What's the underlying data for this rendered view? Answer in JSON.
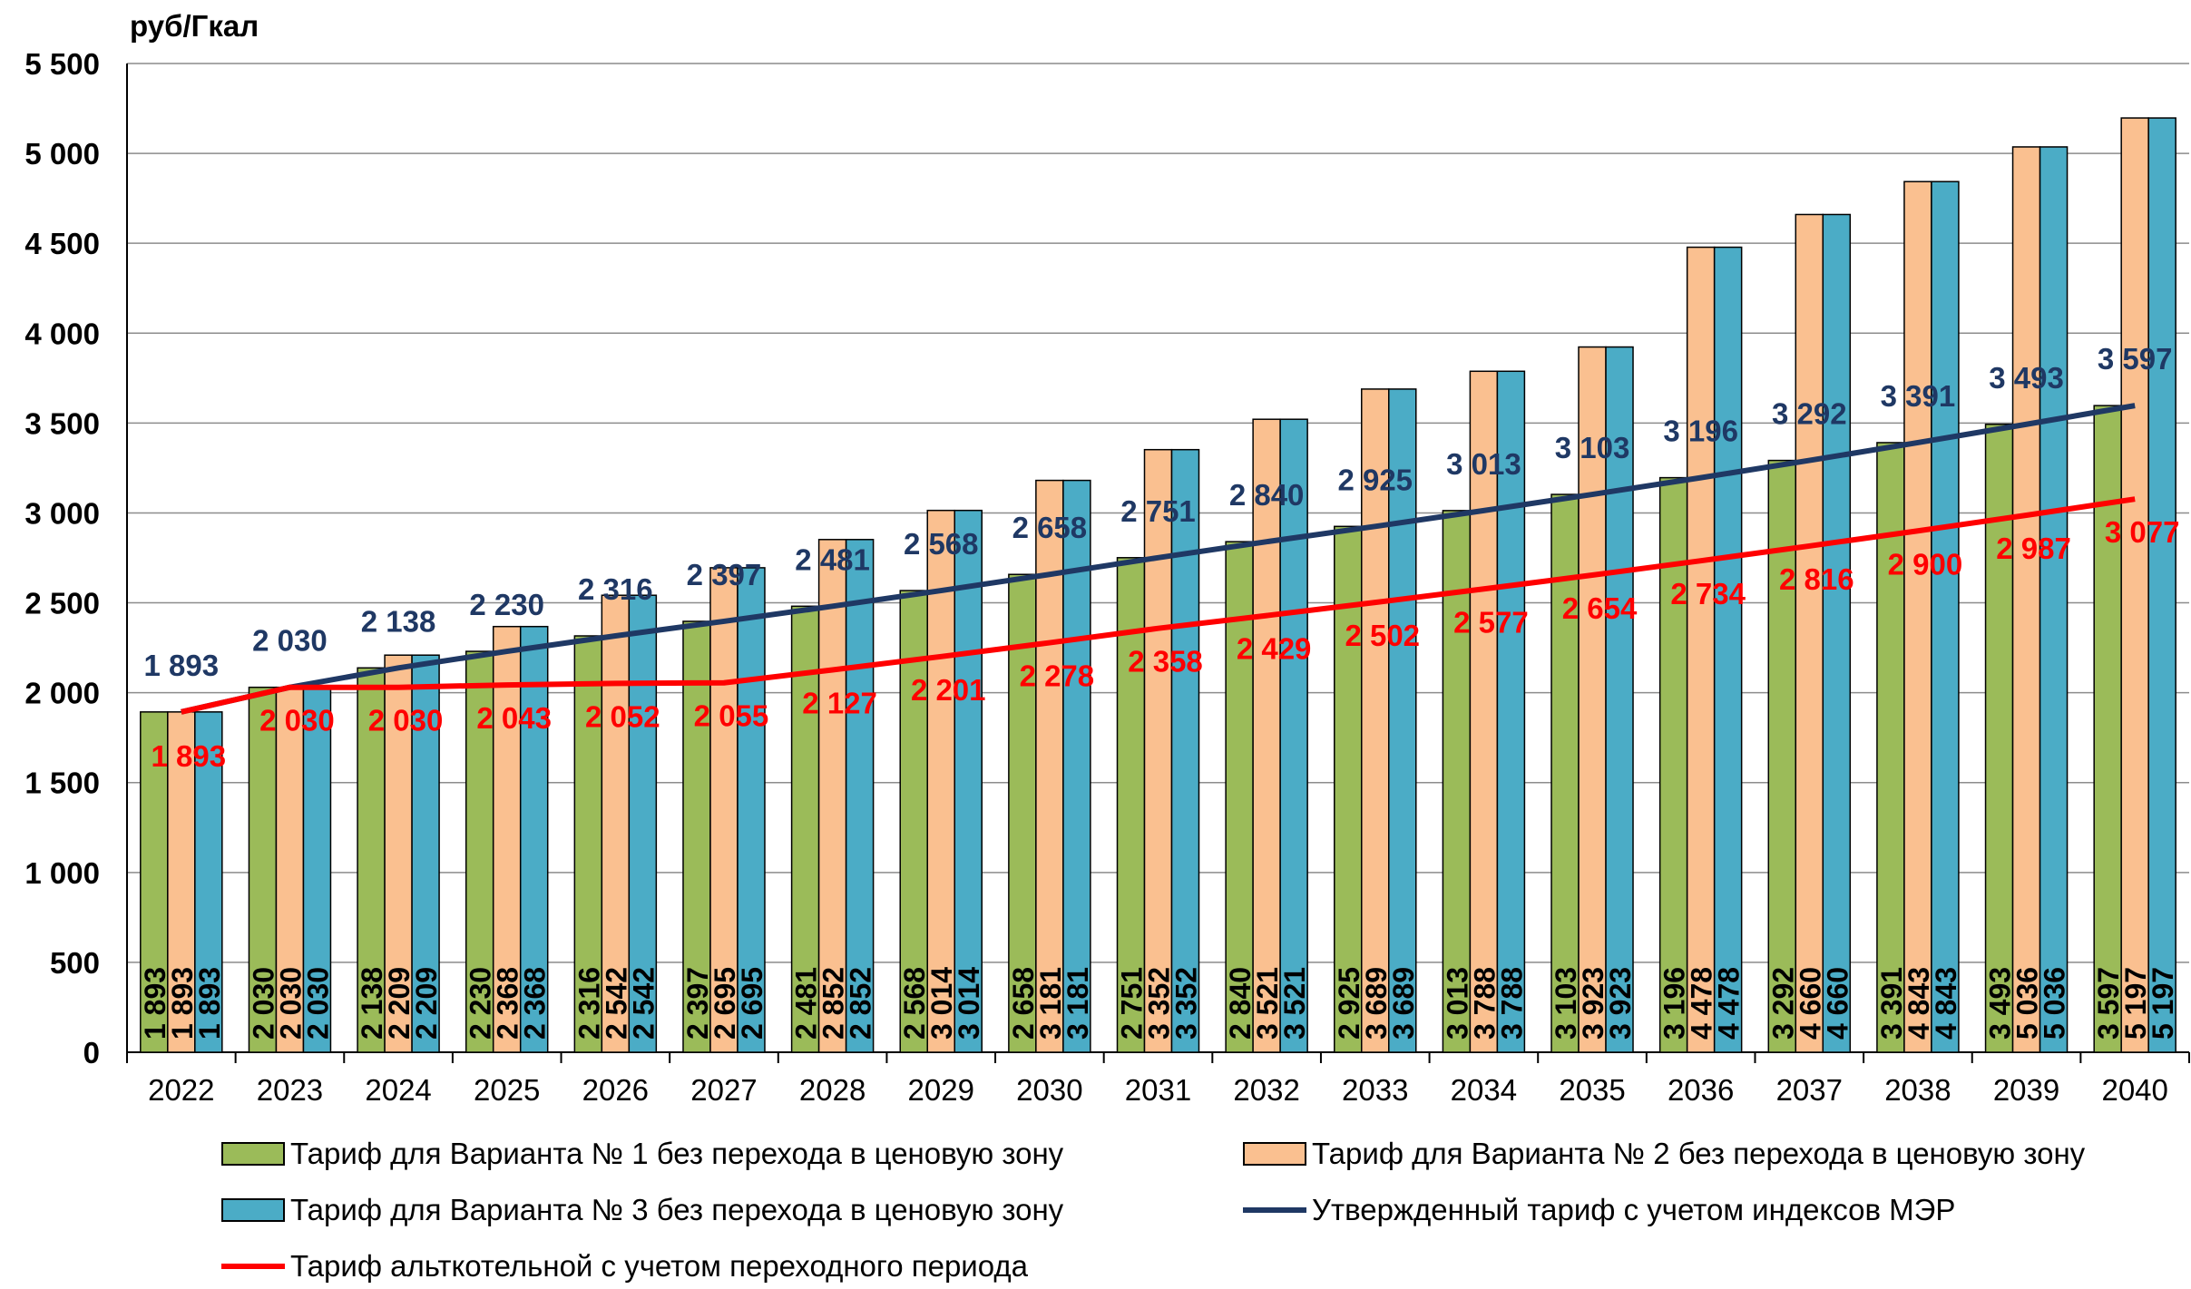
{
  "chart_data": {
    "type": "bar",
    "ylabel": "руб/Гкал",
    "ylim": [
      0,
      5500
    ],
    "yticks": [
      "0",
      "500",
      "1 000",
      "1 500",
      "2 000",
      "2 500",
      "3 000",
      "3 500",
      "4 000",
      "4 500",
      "5 000",
      "5 500"
    ],
    "grid": true,
    "legend_position": "bottom",
    "categories": [
      "2022",
      "2023",
      "2024",
      "2025",
      "2026",
      "2027",
      "2028",
      "2029",
      "2030",
      "2031",
      "2032",
      "2033",
      "2034",
      "2035",
      "2036",
      "2037",
      "2038",
      "2039",
      "2040"
    ],
    "series": [
      {
        "name": "Тариф для  Варианта № 1 без перехода в ценовую зону",
        "kind": "bar",
        "color": "#9BBB59",
        "values": [
          1893,
          2030,
          2138,
          2230,
          2316,
          2397,
          2481,
          2568,
          2658,
          2751,
          2840,
          2925,
          3013,
          3103,
          3196,
          3292,
          3391,
          3493,
          3597
        ],
        "labels": [
          "1 893",
          "2 030",
          "2 138",
          "2 230",
          "2 316",
          "2 397",
          "2 481",
          "2 568",
          "2 658",
          "2 751",
          "2 840",
          "2 925",
          "3 013",
          "3 103",
          "3 196",
          "3 292",
          "3 391",
          "3 493",
          "3 597"
        ]
      },
      {
        "name": "Тариф для  Варианта № 2 без перехода в ценовую зону",
        "kind": "bar",
        "color": "#FAC090",
        "values": [
          1893,
          2030,
          2209,
          2368,
          2542,
          2695,
          2852,
          3014,
          3181,
          3352,
          3521,
          3689,
          3788,
          3923,
          4478,
          4660,
          4843,
          5036,
          5197
        ],
        "labels": [
          "1 893",
          "2 030",
          "2 209",
          "2 368",
          "2 542",
          "2 695",
          "2 852",
          "3 014",
          "3 181",
          "3 352",
          "3 521",
          "3 689",
          "3 788",
          "3 923",
          "4 478",
          "4 660",
          "4 843",
          "5 036",
          "5 197"
        ]
      },
      {
        "name": "Тариф для  Варианта № 3 без перехода в ценовую зону",
        "kind": "bar",
        "color": "#4BACC6",
        "values": [
          1893,
          2030,
          2209,
          2368,
          2542,
          2695,
          2852,
          3014,
          3181,
          3352,
          3521,
          3689,
          3788,
          3923,
          4478,
          4660,
          4843,
          5036,
          5197
        ],
        "labels": [
          "1 893",
          "2 030",
          "2 209",
          "2 368",
          "2 542",
          "2 695",
          "2 852",
          "3 014",
          "3 181",
          "3 352",
          "3 521",
          "3 689",
          "3 788",
          "3 923",
          "4 478",
          "4 660",
          "4 843",
          "5 036",
          "5 197"
        ]
      },
      {
        "name": "Утвержденный тариф с учетом индексов МЭР",
        "kind": "line",
        "color": "#1F3864",
        "values": [
          1893,
          2030,
          2138,
          2230,
          2316,
          2397,
          2481,
          2568,
          2658,
          2751,
          2840,
          2925,
          3013,
          3103,
          3196,
          3292,
          3391,
          3493,
          3597
        ],
        "labels": [
          "1 893",
          "2 030",
          "2 138",
          "2 230",
          "2 316",
          "2 397",
          "2 481",
          "2 568",
          "2 658",
          "2 751",
          "2 840",
          "2 925",
          "3 013",
          "3 103",
          "3 196",
          "3 292",
          "3 391",
          "3 493",
          "3 597"
        ]
      },
      {
        "name": "Тариф альткотельной с учетом переходного периода",
        "kind": "line",
        "color": "#FF0000",
        "values": [
          1893,
          2030,
          2030,
          2043,
          2052,
          2055,
          2127,
          2201,
          2278,
          2358,
          2429,
          2502,
          2577,
          2654,
          2734,
          2816,
          2900,
          2987,
          3077
        ],
        "labels": [
          "1 893",
          "2 030",
          "2 030",
          "2 043",
          "2 052",
          "2 055",
          "2 127",
          "2 201",
          "2 278",
          "2 358",
          "2 429",
          "2 502",
          "2 577",
          "2 654",
          "2 734",
          "2 816",
          "2 900",
          "2 987",
          "3 077"
        ]
      }
    ]
  }
}
